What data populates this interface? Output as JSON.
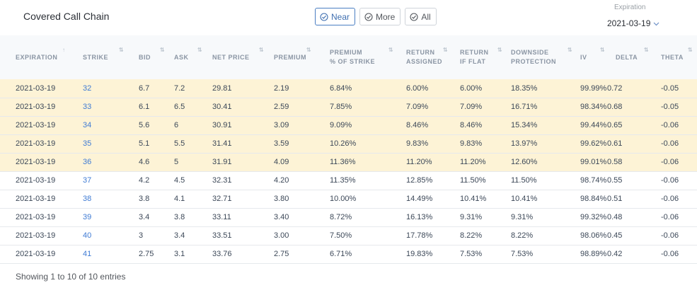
{
  "header": {
    "title": "Covered Call Chain",
    "filters": [
      {
        "label": "Near",
        "active": true
      },
      {
        "label": "More",
        "active": false
      },
      {
        "label": "All",
        "active": false
      }
    ],
    "expiration_label": "Expiration",
    "expiration_value": "2021-03-19",
    "icons": {
      "filter_check": "check-circle-icon",
      "dropdown": "chevron-down-icon",
      "sort": "sort-arrows-icon"
    }
  },
  "table": {
    "columns": [
      {
        "line1": "EXPIRATION",
        "line2": ""
      },
      {
        "line1": "STRIKE",
        "line2": ""
      },
      {
        "line1": "BID",
        "line2": ""
      },
      {
        "line1": "ASK",
        "line2": ""
      },
      {
        "line1": "NET PRICE",
        "line2": ""
      },
      {
        "line1": "PREMIUM",
        "line2": ""
      },
      {
        "line1": "PREMIUM",
        "line2": "% OF STRIKE"
      },
      {
        "line1": "RETURN",
        "line2": "ASSIGNED"
      },
      {
        "line1": "RETURN",
        "line2": "IF FLAT"
      },
      {
        "line1": "DOWNSIDE",
        "line2": "PROTECTION"
      },
      {
        "line1": "IV",
        "line2": ""
      },
      {
        "line1": "DELTA",
        "line2": ""
      },
      {
        "line1": "THETA",
        "line2": ""
      }
    ],
    "rows": [
      {
        "highlight": true,
        "cells": [
          "2021-03-19",
          "32",
          "6.7",
          "7.2",
          "29.81",
          "2.19",
          "6.84%",
          "6.00%",
          "6.00%",
          "18.35%",
          "99.99%",
          "0.72",
          "-0.05"
        ]
      },
      {
        "highlight": true,
        "cells": [
          "2021-03-19",
          "33",
          "6.1",
          "6.5",
          "30.41",
          "2.59",
          "7.85%",
          "7.09%",
          "7.09%",
          "16.71%",
          "98.34%",
          "0.68",
          "-0.05"
        ]
      },
      {
        "highlight": true,
        "cells": [
          "2021-03-19",
          "34",
          "5.6",
          "6",
          "30.91",
          "3.09",
          "9.09%",
          "8.46%",
          "8.46%",
          "15.34%",
          "99.44%",
          "0.65",
          "-0.06"
        ]
      },
      {
        "highlight": true,
        "cells": [
          "2021-03-19",
          "35",
          "5.1",
          "5.5",
          "31.41",
          "3.59",
          "10.26%",
          "9.83%",
          "9.83%",
          "13.97%",
          "99.62%",
          "0.61",
          "-0.06"
        ]
      },
      {
        "highlight": true,
        "cells": [
          "2021-03-19",
          "36",
          "4.6",
          "5",
          "31.91",
          "4.09",
          "11.36%",
          "11.20%",
          "11.20%",
          "12.60%",
          "99.01%",
          "0.58",
          "-0.06"
        ]
      },
      {
        "highlight": false,
        "cells": [
          "2021-03-19",
          "37",
          "4.2",
          "4.5",
          "32.31",
          "4.20",
          "11.35%",
          "12.85%",
          "11.50%",
          "11.50%",
          "98.74%",
          "0.55",
          "-0.06"
        ]
      },
      {
        "highlight": false,
        "cells": [
          "2021-03-19",
          "38",
          "3.8",
          "4.1",
          "32.71",
          "3.80",
          "10.00%",
          "14.49%",
          "10.41%",
          "10.41%",
          "98.84%",
          "0.51",
          "-0.06"
        ]
      },
      {
        "highlight": false,
        "cells": [
          "2021-03-19",
          "39",
          "3.4",
          "3.8",
          "33.11",
          "3.40",
          "8.72%",
          "16.13%",
          "9.31%",
          "9.31%",
          "99.32%",
          "0.48",
          "-0.06"
        ]
      },
      {
        "highlight": false,
        "cells": [
          "2021-03-19",
          "40",
          "3",
          "3.4",
          "33.51",
          "3.00",
          "7.50%",
          "17.78%",
          "8.22%",
          "8.22%",
          "98.06%",
          "0.45",
          "-0.06"
        ]
      },
      {
        "highlight": false,
        "cells": [
          "2021-03-19",
          "41",
          "2.75",
          "3.1",
          "33.76",
          "2.75",
          "6.71%",
          "19.83%",
          "7.53%",
          "7.53%",
          "98.89%",
          "0.42",
          "-0.06"
        ]
      }
    ]
  },
  "footer": {
    "info": "Showing 1 to 10 of 10 entries"
  }
}
